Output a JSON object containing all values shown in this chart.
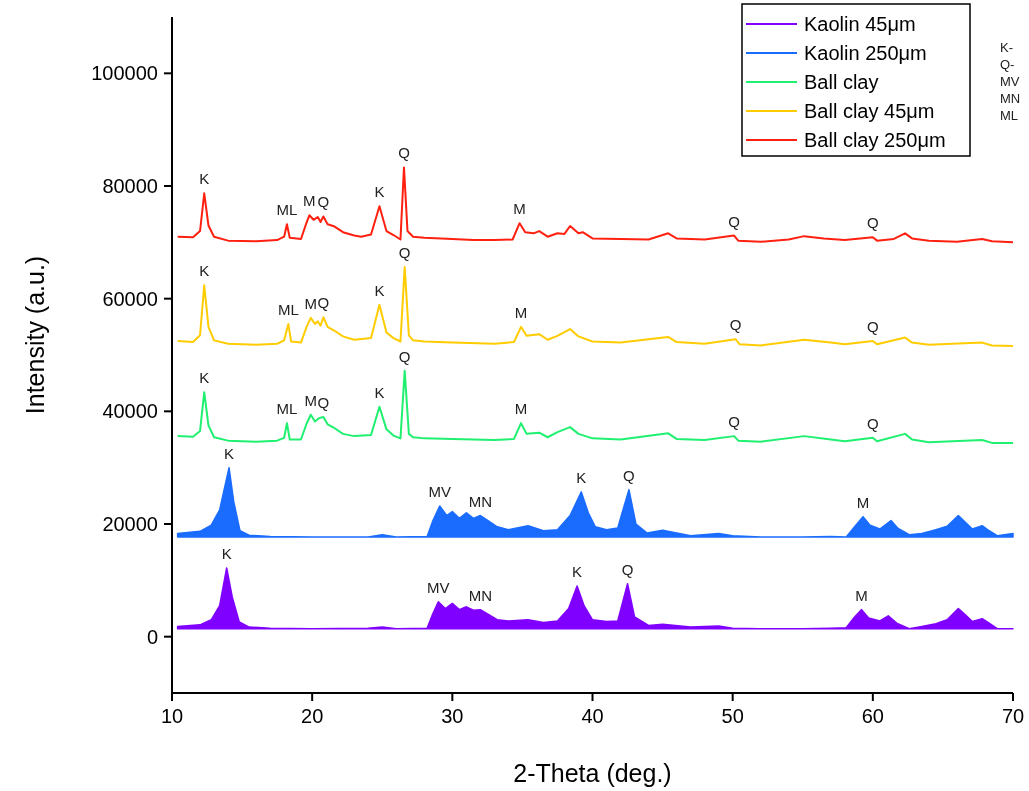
{
  "chart_data": {
    "type": "line",
    "xlabel": "2-Theta (deg.)",
    "ylabel": "Intensity (a.u.)",
    "xlim": [
      10,
      70
    ],
    "ylim": [
      -10000,
      110000
    ],
    "xticks": [
      10,
      20,
      30,
      40,
      50,
      60,
      70
    ],
    "yticks": [
      0,
      20000,
      40000,
      60000,
      80000,
      100000
    ],
    "grid": false,
    "legend": "top right",
    "series": [
      {
        "name": "Kaolin 45μm",
        "type": "area",
        "color": "#8000ff",
        "x": [
          10.4,
          12.0,
          12.8,
          13.4,
          13.9,
          14.3,
          14.8,
          15.5,
          17,
          20,
          24,
          25,
          26,
          28.2,
          28.6,
          29.0,
          29.5,
          30.0,
          30.5,
          31.0,
          31.5,
          32.0,
          32.6,
          33.2,
          34,
          35.4,
          36.5,
          37.5,
          38.3,
          38.9,
          39.4,
          40,
          41.0,
          41.8,
          42.5,
          43.0,
          44,
          45,
          47,
          49,
          50,
          52,
          55,
          57,
          58.1,
          58.7,
          59.2,
          59.7,
          60.5,
          61.1,
          61.7,
          62.6,
          63.5,
          64.5,
          65.3,
          66.1,
          66.6,
          67.1,
          67.8,
          68.3,
          68.9,
          70
        ],
        "values": [
          1800,
          2100,
          3000,
          5500,
          12200,
          7000,
          2600,
          1700,
          1500,
          1400,
          1500,
          1700,
          1400,
          1500,
          4000,
          6200,
          5000,
          5900,
          4800,
          5300,
          4700,
          4800,
          3900,
          3000,
          2800,
          3000,
          2500,
          2800,
          5000,
          9000,
          5500,
          3000,
          2700,
          2800,
          9400,
          3500,
          2000,
          2200,
          1700,
          1900,
          1500,
          1400,
          1400,
          1500,
          1600,
          3500,
          4800,
          3300,
          2800,
          3700,
          2400,
          1400,
          1800,
          2300,
          3000,
          5000,
          3900,
          2700,
          3200,
          2400,
          1400,
          1400
        ]
      },
      {
        "name": "Kaolin 250μm",
        "type": "area",
        "color": "#1a6cff",
        "x": [
          10.4,
          12.0,
          12.8,
          13.4,
          14.07,
          14.4,
          14.85,
          15.5,
          17,
          20,
          24,
          25,
          26,
          28.2,
          28.6,
          29.1,
          29.6,
          30.0,
          30.5,
          31.0,
          31.5,
          32.0,
          32.6,
          33.2,
          34,
          35.4,
          36.5,
          37.5,
          38.4,
          39.2,
          39.7,
          40.2,
          41.0,
          41.8,
          42.6,
          43.1,
          43.9,
          45,
          47,
          49,
          50,
          52,
          55,
          57,
          58.1,
          58.7,
          59.3,
          59.8,
          60.5,
          61.3,
          61.8,
          62.6,
          63.5,
          64.5,
          65.3,
          66.1,
          66.6,
          67.1,
          67.8,
          68.3,
          68.9,
          70
        ],
        "values": [
          18300,
          18700,
          19800,
          22500,
          30000,
          24000,
          18800,
          18000,
          17800,
          17700,
          17700,
          18100,
          17700,
          17800,
          20500,
          23200,
          21500,
          22200,
          21000,
          22000,
          21000,
          21500,
          20500,
          19500,
          19000,
          19700,
          18800,
          19000,
          21500,
          25700,
          22000,
          19500,
          19000,
          19300,
          26100,
          20000,
          18400,
          18900,
          17900,
          18300,
          17900,
          17700,
          17700,
          17800,
          17700,
          19500,
          21300,
          19800,
          19100,
          20600,
          19200,
          18100,
          18300,
          19000,
          19600,
          21500,
          20300,
          19100,
          19700,
          18800,
          17900,
          18300
        ]
      },
      {
        "name": "Ball clay",
        "color": "#20f070",
        "x": [
          10.4,
          11.5,
          12.0,
          12.3,
          12.6,
          13.0,
          14,
          16,
          17.5,
          18.0,
          18.2,
          18.4,
          19.2,
          19.6,
          19.9,
          20.2,
          20.5,
          20.8,
          21.1,
          21.6,
          22.2,
          23,
          24.2,
          24.8,
          25.3,
          25.8,
          26.3,
          26.6,
          26.9,
          27.2,
          28,
          30,
          33,
          34.4,
          34.9,
          35.3,
          36.2,
          36.8,
          37.5,
          38.4,
          39.0,
          40,
          42,
          45.4,
          46,
          48,
          50.1,
          50.4,
          52,
          55.1,
          57,
          58,
          60,
          60.3,
          62.3,
          62.8,
          64,
          67.8,
          68.5,
          70
        ],
        "values": [
          35600,
          35500,
          36500,
          43400,
          37500,
          35400,
          34800,
          34600,
          34800,
          35300,
          37900,
          35000,
          35000,
          37800,
          39400,
          38200,
          38800,
          39000,
          37700,
          37000,
          36000,
          35600,
          35800,
          40800,
          36800,
          35700,
          35200,
          47200,
          36000,
          35400,
          35200,
          35100,
          34900,
          35100,
          37900,
          36000,
          36200,
          35400,
          36300,
          37200,
          36000,
          35200,
          35000,
          36100,
          35100,
          34900,
          35600,
          34800,
          34600,
          35600,
          35000,
          34700,
          35300,
          34700,
          36000,
          35000,
          34500,
          34900,
          34400,
          34400
        ]
      },
      {
        "name": "Ball clay 45μm",
        "color": "#ffcc00",
        "x": [
          10.4,
          11.5,
          12.0,
          12.3,
          12.6,
          13.0,
          14,
          16,
          17.5,
          18.0,
          18.3,
          18.5,
          19.2,
          19.6,
          19.9,
          20.2,
          20.4,
          20.6,
          20.8,
          21.1,
          21.6,
          22.2,
          23,
          24.2,
          24.8,
          25.3,
          25.8,
          26.3,
          26.6,
          26.9,
          27.2,
          28,
          30,
          33,
          34.4,
          34.9,
          35.3,
          36.2,
          36.8,
          37.5,
          38.4,
          39.0,
          40,
          42,
          45.4,
          46,
          48,
          50.2,
          50.5,
          52,
          55.1,
          57,
          58,
          60,
          60.3,
          62.3,
          62.8,
          64,
          67.8,
          68.5,
          70
        ],
        "values": [
          52500,
          52300,
          53500,
          62400,
          55000,
          52600,
          52000,
          51800,
          52000,
          52600,
          55500,
          52400,
          52200,
          55000,
          56600,
          55500,
          56000,
          55200,
          56700,
          55000,
          54300,
          53300,
          52700,
          53000,
          58900,
          54000,
          53000,
          52400,
          65600,
          53500,
          52600,
          52400,
          52200,
          52000,
          52300,
          55000,
          53400,
          53700,
          52700,
          53400,
          54600,
          53300,
          52400,
          52200,
          53200,
          52300,
          52000,
          52800,
          51900,
          51700,
          52700,
          52200,
          51900,
          52500,
          51900,
          53100,
          52200,
          51800,
          52200,
          51700,
          51600
        ]
      },
      {
        "name": "Ball clay 250μm",
        "color": "#ff2010",
        "x": [
          10.4,
          11.5,
          12.0,
          12.3,
          12.6,
          13.0,
          14,
          16,
          17.5,
          18.0,
          18.2,
          18.4,
          19.2,
          19.6,
          19.8,
          20.1,
          20.4,
          20.6,
          20.8,
          21.1,
          21.6,
          22.2,
          23,
          23.5,
          24.2,
          24.8,
          25.3,
          25.8,
          26.3,
          26.55,
          26.8,
          27.2,
          28,
          30,
          31.5,
          33,
          34.3,
          34.8,
          35.2,
          35.8,
          36.2,
          36.8,
          37.5,
          38.0,
          38.4,
          39.0,
          39.3,
          40,
          42,
          44,
          45.4,
          46,
          48,
          50.1,
          50.4,
          52,
          54,
          55.1,
          56.5,
          58,
          60,
          60.3,
          61.5,
          62.3,
          62.8,
          64,
          66,
          67.8,
          68.5,
          70
        ],
        "values": [
          71000,
          70900,
          72000,
          78700,
          73000,
          71000,
          70300,
          70200,
          70400,
          71000,
          73200,
          70800,
          70600,
          73500,
          74800,
          74000,
          74500,
          73600,
          74600,
          73200,
          72800,
          71800,
          71200,
          71000,
          71400,
          76400,
          72000,
          71300,
          70500,
          83300,
          72000,
          71000,
          70800,
          70600,
          70400,
          70400,
          70500,
          73400,
          71800,
          71600,
          72000,
          71000,
          71600,
          71500,
          72900,
          71600,
          71800,
          70700,
          70600,
          70500,
          71600,
          70700,
          70500,
          71200,
          70300,
          70100,
          70500,
          71100,
          70700,
          70400,
          70900,
          70300,
          70600,
          71600,
          70700,
          70300,
          70100,
          70600,
          70200,
          70000
        ]
      }
    ],
    "annotations": [
      {
        "text": "K",
        "x": 12.3,
        "y": 78700
      },
      {
        "text": "ML",
        "x": 18.2,
        "y": 73200
      },
      {
        "text": "M",
        "x": 19.8,
        "y": 74800
      },
      {
        "text": "Q",
        "x": 20.8,
        "y": 74600
      },
      {
        "text": "K",
        "x": 24.8,
        "y": 76400
      },
      {
        "text": "Q",
        "x": 26.55,
        "y": 83300
      },
      {
        "text": "M",
        "x": 34.8,
        "y": 73400
      },
      {
        "text": "Q",
        "x": 50.1,
        "y": 71200
      },
      {
        "text": "Q",
        "x": 60,
        "y": 70900
      },
      {
        "text": "K",
        "x": 12.3,
        "y": 62400
      },
      {
        "text": "ML",
        "x": 18.3,
        "y": 55500
      },
      {
        "text": "M",
        "x": 19.9,
        "y": 56600
      },
      {
        "text": "Q",
        "x": 20.8,
        "y": 56700
      },
      {
        "text": "K",
        "x": 24.8,
        "y": 58900
      },
      {
        "text": "Q",
        "x": 26.6,
        "y": 65600
      },
      {
        "text": "M",
        "x": 34.9,
        "y": 55000
      },
      {
        "text": "Q",
        "x": 50.2,
        "y": 52800
      },
      {
        "text": "Q",
        "x": 60,
        "y": 52500
      },
      {
        "text": "K",
        "x": 12.3,
        "y": 43400
      },
      {
        "text": "ML",
        "x": 18.2,
        "y": 37900
      },
      {
        "text": "M",
        "x": 19.9,
        "y": 39400
      },
      {
        "text": "Q",
        "x": 20.8,
        "y": 39000
      },
      {
        "text": "K",
        "x": 24.8,
        "y": 40800
      },
      {
        "text": "Q",
        "x": 26.6,
        "y": 47200
      },
      {
        "text": "M",
        "x": 34.9,
        "y": 37900
      },
      {
        "text": "Q",
        "x": 50.1,
        "y": 35600
      },
      {
        "text": "Q",
        "x": 60,
        "y": 35300
      },
      {
        "text": "K",
        "x": 14.07,
        "y": 30000
      },
      {
        "text": "MV",
        "x": 29.1,
        "y": 23200
      },
      {
        "text": "MN",
        "x": 32.0,
        "y": 21500
      },
      {
        "text": "K",
        "x": 39.2,
        "y": 25700
      },
      {
        "text": "Q",
        "x": 42.6,
        "y": 26100
      },
      {
        "text": "M",
        "x": 59.3,
        "y": 21300
      },
      {
        "text": "K",
        "x": 13.9,
        "y": 12200
      },
      {
        "text": "MV",
        "x": 29.0,
        "y": 6200
      },
      {
        "text": "MN",
        "x": 32.0,
        "y": 4800
      },
      {
        "text": "K",
        "x": 38.9,
        "y": 9000
      },
      {
        "text": "Q",
        "x": 42.5,
        "y": 9400
      },
      {
        "text": "M",
        "x": 59.2,
        "y": 4800
      },
      "K-",
      "Q-",
      "MV",
      "MN",
      "ML"
    ]
  }
}
